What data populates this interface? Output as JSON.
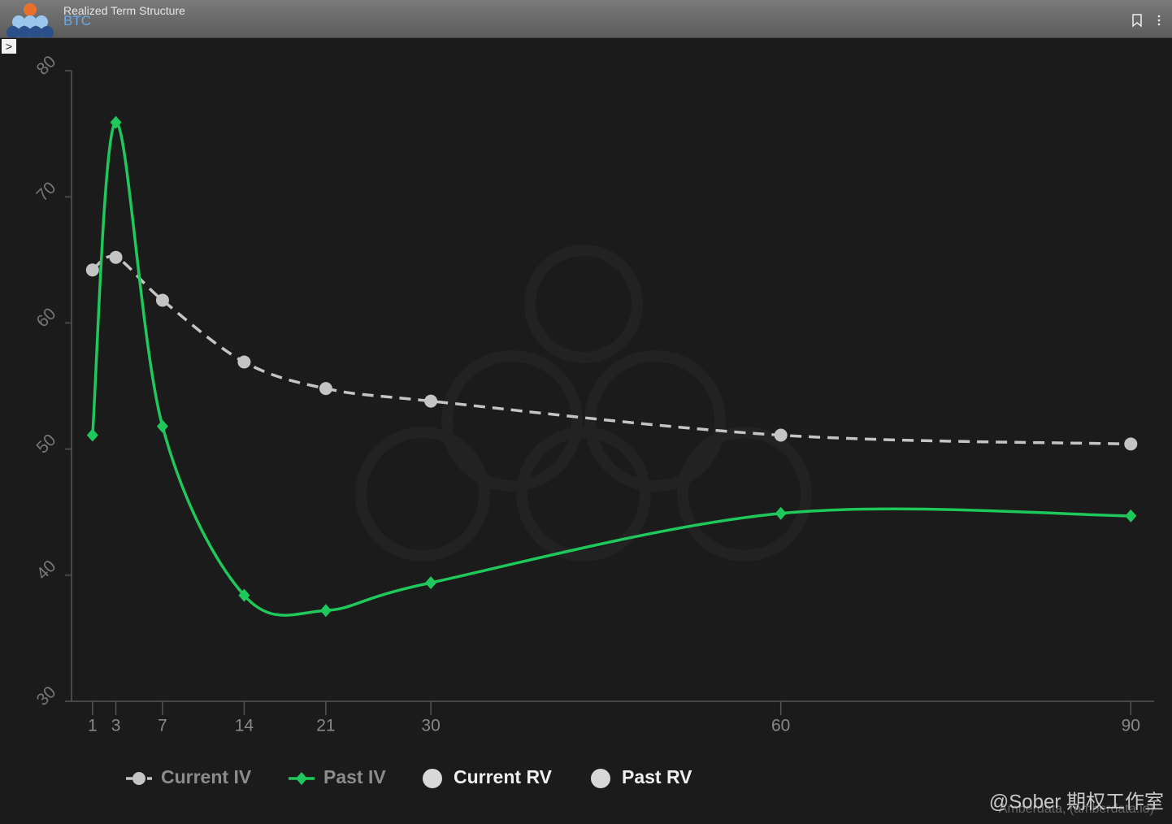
{
  "chart_data": {
    "type": "line",
    "title": "Realized Term Structure",
    "subtitle": "BTC",
    "x": [
      1,
      3,
      7,
      14,
      21,
      30,
      60,
      90
    ],
    "xlim": [
      -0.8,
      92
    ],
    "xticks": [
      1,
      3,
      7,
      14,
      21,
      30,
      60,
      90
    ],
    "ylim": [
      30,
      80
    ],
    "yticks": [
      30,
      40,
      50,
      60,
      70,
      80
    ],
    "series": [
      {
        "name": "Current IV",
        "color": "#c4c4c4",
        "values": [
          64.2,
          65.2,
          61.8,
          56.9,
          54.8,
          53.8,
          51.1,
          50.4
        ]
      },
      {
        "name": "Past IV",
        "color": "#1ec85a",
        "values": [
          51.1,
          75.9,
          51.8,
          38.4,
          37.2,
          39.4,
          44.9,
          44.7
        ]
      }
    ],
    "legend_only": [
      {
        "name": "Current RV",
        "color": "#d8d8d8"
      },
      {
        "name": "Past RV",
        "color": "#d8d8d8"
      }
    ],
    "credit": "Amberdata, (amberdata.io)",
    "watermark": "@Sober 期权工作室"
  }
}
